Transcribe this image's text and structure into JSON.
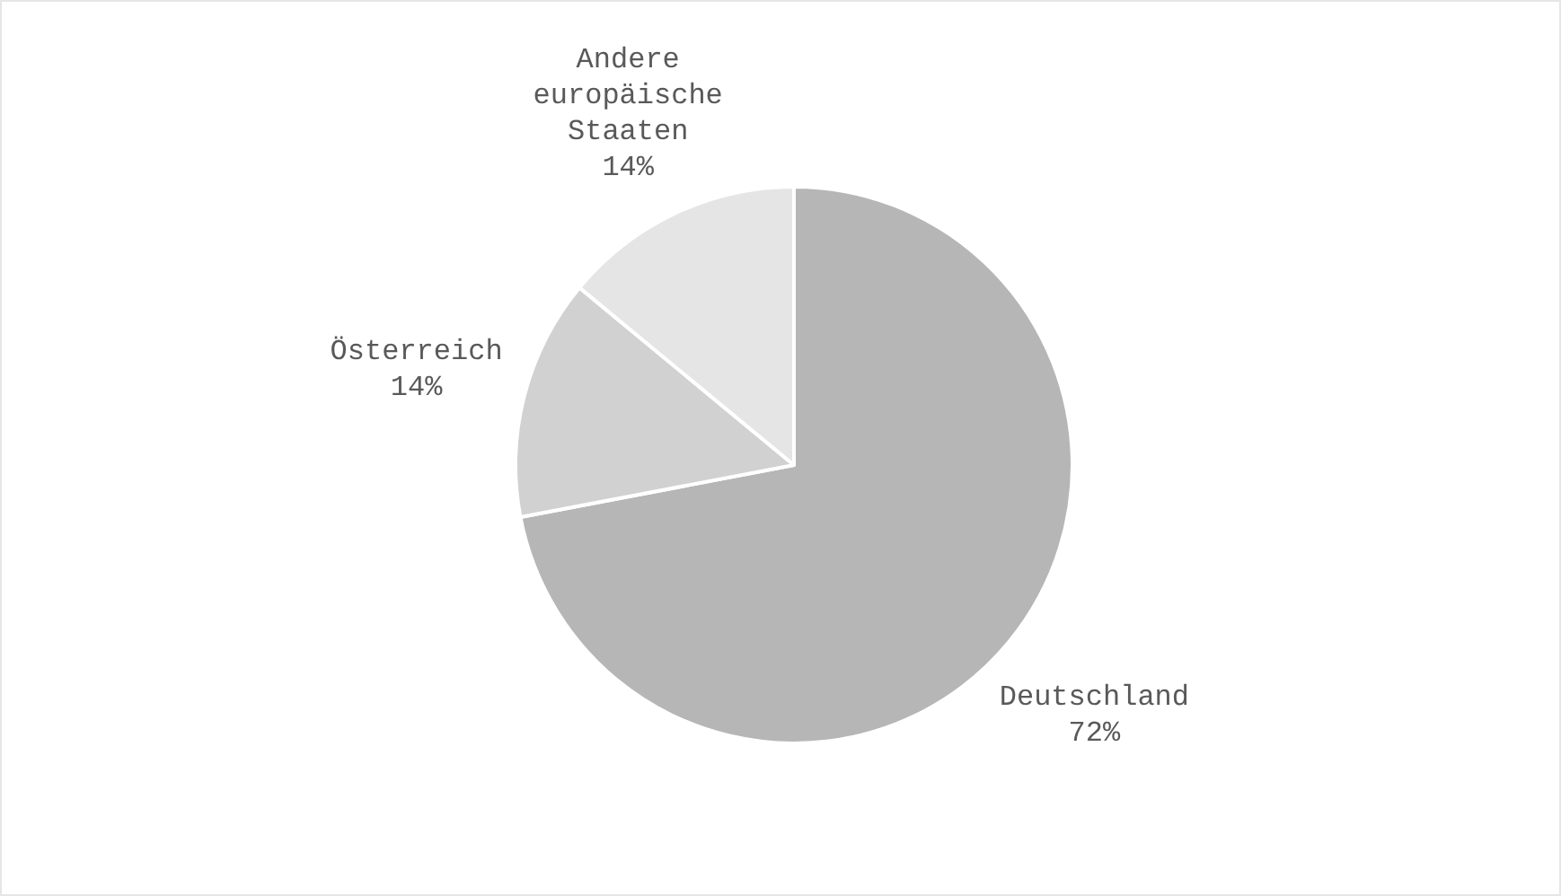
{
  "chart_data": {
    "type": "pie",
    "categories": [
      "Deutschland",
      "Österreich",
      "Andere europäische Staaten"
    ],
    "values": [
      72,
      14,
      14
    ],
    "value_labels": [
      "72%",
      "14%",
      "14%"
    ],
    "colors": [
      "#b5b6b5",
      "#d0d1d0",
      "#e4e5e4"
    ],
    "legend": false
  }
}
